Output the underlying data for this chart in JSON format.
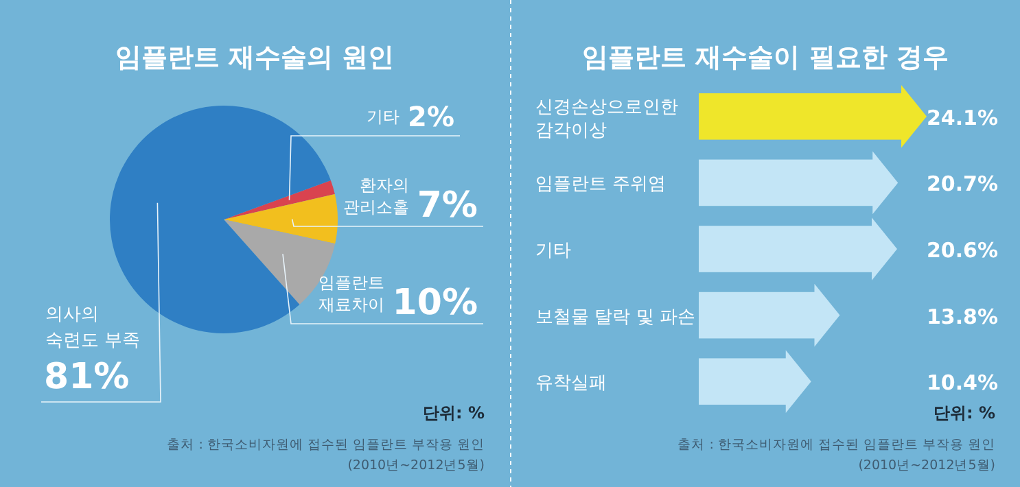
{
  "chart_data": [
    {
      "type": "pie",
      "title": "임플란트 재수술의 원인",
      "categories": [
        "기타",
        "환자의\n관리소홀",
        "임플란트\n재료차이",
        "의사의\n숙련도 부족"
      ],
      "values": [
        2,
        7,
        10,
        81
      ],
      "colors": [
        "#d9434f",
        "#f2bf1e",
        "#a9a9a9",
        "#2f7fc4"
      ],
      "value_labels": [
        "2%",
        "7%",
        "10%",
        "81%"
      ],
      "annotations": [
        "단위: %",
        "출처 : 한국소비자원에 접수된 임플란트 부작용 원인",
        "(2010년~2012년5월)"
      ]
    },
    {
      "type": "bar",
      "orientation": "horizontal",
      "title": "임플란트 재수술이 필요한 경우",
      "categories": [
        "신경손상으로인한\n감각이상",
        "임플란트 주위염",
        "기타",
        "보철물 탈락 및 파손",
        "유착실패"
      ],
      "values": [
        24.1,
        20.7,
        20.6,
        13.8,
        10.4
      ],
      "colors": [
        "#efe62a",
        "#c3e5f6",
        "#c3e5f6",
        "#c3e5f6",
        "#c3e5f6"
      ],
      "value_labels": [
        "24.1%",
        "20.7%",
        "20.6%",
        "13.8%",
        "10.4%"
      ],
      "annotations": [
        "단위: %",
        "출처 : 한국소비자원에 접수된 임플란트 부작용 원인",
        "(2010년~2012년5월)"
      ]
    }
  ]
}
